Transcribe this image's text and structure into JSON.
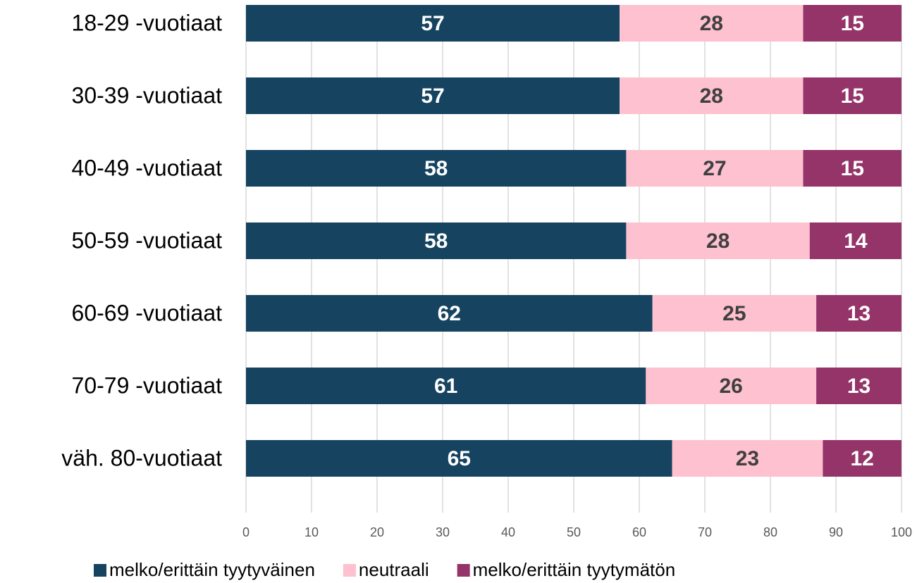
{
  "chart_data": {
    "type": "bar",
    "orientation": "horizontal",
    "stacked": true,
    "categories": [
      "18-29 -vuotiaat",
      "30-39 -vuotiaat",
      "40-49 -vuotiaat",
      "50-59 -vuotiaat",
      "60-69 -vuotiaat",
      "70-79 -vuotiaat",
      "väh. 80-vuotiaat"
    ],
    "series": [
      {
        "name": "melko/erittäin tyytyväinen",
        "color": "#154360",
        "label_color": "#ffffff",
        "values": [
          57,
          57,
          58,
          58,
          62,
          61,
          65
        ]
      },
      {
        "name": "neutraali",
        "color": "#fdc1cf",
        "label_color": "#404040",
        "values": [
          28,
          28,
          27,
          28,
          25,
          26,
          23
        ]
      },
      {
        "name": "melko/erittäin tyytymätön",
        "color": "#943468",
        "label_color": "#ffffff",
        "values": [
          15,
          15,
          15,
          14,
          13,
          13,
          12
        ]
      }
    ],
    "xlim": [
      0,
      100
    ],
    "xticks": [
      0,
      10,
      20,
      30,
      40,
      50,
      60,
      70,
      80,
      90,
      100
    ],
    "grid": true,
    "legend": "bottom"
  }
}
